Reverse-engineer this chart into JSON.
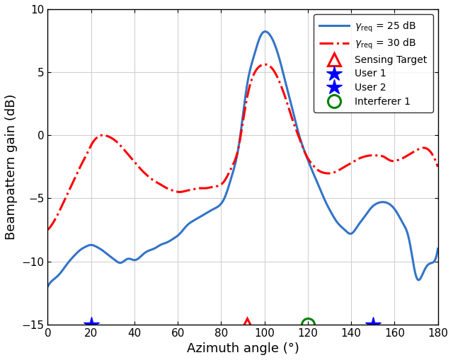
{
  "xlabel": "Azimuth angle (°)",
  "ylabel": "Beampattern gain (dB)",
  "xlim": [
    0,
    180
  ],
  "ylim": [
    -15,
    10
  ],
  "xticks": [
    0,
    20,
    40,
    60,
    80,
    100,
    120,
    140,
    160,
    180
  ],
  "yticks": [
    -15,
    -10,
    -5,
    0,
    5,
    10
  ],
  "blue_color": "#3374C8",
  "red_color": "#FF0000",
  "marker_y": -15,
  "sensing_target_x": 92,
  "user1_x": 20,
  "user2_x": 150,
  "interferer1_x": 120,
  "blue_x": [
    0,
    3,
    6,
    9,
    12,
    15,
    18,
    20,
    22,
    25,
    28,
    31,
    34,
    37,
    40,
    43,
    46,
    49,
    52,
    55,
    58,
    61,
    64,
    67,
    70,
    73,
    76,
    79,
    82,
    85,
    88,
    90,
    92,
    95,
    98,
    101,
    104,
    107,
    110,
    113,
    116,
    119,
    122,
    125,
    128,
    131,
    134,
    137,
    140,
    143,
    146,
    149,
    152,
    155,
    158,
    161,
    164,
    167,
    170,
    173,
    176,
    180
  ],
  "blue_y": [
    -12.0,
    -11.4,
    -10.9,
    -10.2,
    -9.6,
    -9.1,
    -8.8,
    -8.7,
    -8.8,
    -9.1,
    -9.5,
    -9.9,
    -10.1,
    -9.8,
    -9.9,
    -9.6,
    -9.2,
    -9.0,
    -8.7,
    -8.5,
    -8.2,
    -7.8,
    -7.2,
    -6.8,
    -6.5,
    -6.2,
    -5.9,
    -5.6,
    -4.8,
    -3.2,
    -1.0,
    1.5,
    4.0,
    6.2,
    7.8,
    8.2,
    7.5,
    6.0,
    4.0,
    2.0,
    0.0,
    -1.5,
    -2.8,
    -4.0,
    -5.2,
    -6.2,
    -7.0,
    -7.5,
    -7.8,
    -7.2,
    -6.5,
    -5.8,
    -5.4,
    -5.3,
    -5.5,
    -6.1,
    -7.0,
    -8.5,
    -11.2,
    -11.0,
    -10.2,
    -9.0
  ],
  "red_x": [
    0,
    3,
    6,
    9,
    12,
    15,
    18,
    20,
    22,
    25,
    28,
    31,
    34,
    37,
    40,
    43,
    46,
    49,
    52,
    55,
    58,
    61,
    64,
    67,
    70,
    73,
    76,
    79,
    82,
    85,
    88,
    90,
    92,
    95,
    98,
    101,
    104,
    107,
    110,
    113,
    116,
    119,
    122,
    125,
    128,
    131,
    134,
    137,
    140,
    143,
    146,
    149,
    152,
    155,
    158,
    161,
    164,
    167,
    170,
    173,
    176,
    180
  ],
  "red_y": [
    -7.5,
    -6.8,
    -5.8,
    -4.7,
    -3.6,
    -2.5,
    -1.5,
    -0.8,
    -0.3,
    0.0,
    -0.1,
    -0.4,
    -0.9,
    -1.5,
    -2.1,
    -2.7,
    -3.2,
    -3.6,
    -3.9,
    -4.2,
    -4.4,
    -4.5,
    -4.4,
    -4.3,
    -4.2,
    -4.2,
    -4.1,
    -4.0,
    -3.5,
    -2.5,
    -1.0,
    1.0,
    3.0,
    4.8,
    5.5,
    5.6,
    5.2,
    4.2,
    2.8,
    1.2,
    -0.2,
    -1.5,
    -2.3,
    -2.8,
    -3.0,
    -3.0,
    -2.8,
    -2.5,
    -2.2,
    -1.9,
    -1.7,
    -1.6,
    -1.6,
    -1.7,
    -2.0,
    -2.0,
    -1.8,
    -1.5,
    -1.2,
    -1.0,
    -1.2,
    -2.5
  ]
}
